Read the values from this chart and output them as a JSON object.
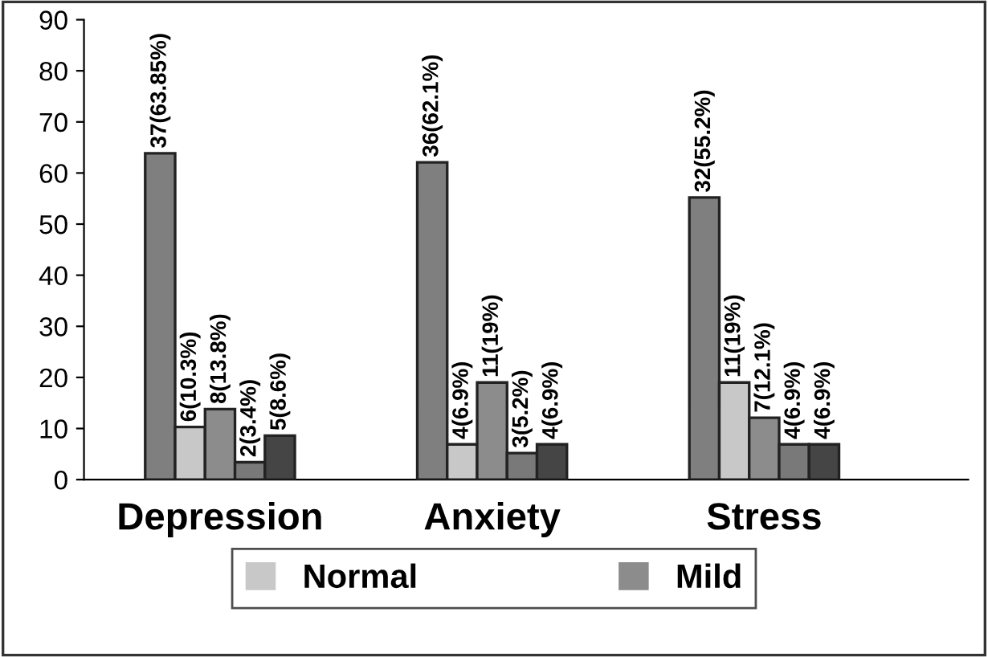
{
  "chart_data": {
    "type": "bar",
    "categories": [
      "Depression",
      "Anxiety",
      "Stress"
    ],
    "series": [
      {
        "color": "#7f7f7f",
        "values": [
          63.85,
          62.1,
          55.2
        ],
        "value_labels": [
          "37(63.85%)",
          "36(62.1%)",
          "32(55.2%)"
        ]
      },
      {
        "name": "Normal",
        "color": "#c8c8c8",
        "values": [
          10.3,
          6.9,
          19
        ],
        "value_labels": [
          "6(10.3%)",
          "4(6.9%)",
          "11(19%)"
        ]
      },
      {
        "name": "Mild",
        "color": "#8c8c8c",
        "values": [
          13.8,
          19,
          12.1
        ],
        "value_labels": [
          "8(13.8%)",
          "11(19%)",
          "7(12.1%)"
        ]
      },
      {
        "color": "#797979",
        "values": [
          3.4,
          5.2,
          6.9
        ],
        "value_labels": [
          "2(3.4%)",
          "3(5.2%)",
          "4(6.9%)"
        ]
      },
      {
        "color": "#454545",
        "values": [
          8.6,
          6.9,
          6.9
        ],
        "value_labels": [
          "5(8.6%)",
          "4(6.9%)",
          "4(6.9%)"
        ]
      }
    ],
    "ylim": [
      0,
      90
    ],
    "yticks": [
      0,
      10,
      20,
      30,
      40,
      50,
      60,
      70,
      80,
      90
    ],
    "grid": false,
    "legend": "bottom"
  }
}
